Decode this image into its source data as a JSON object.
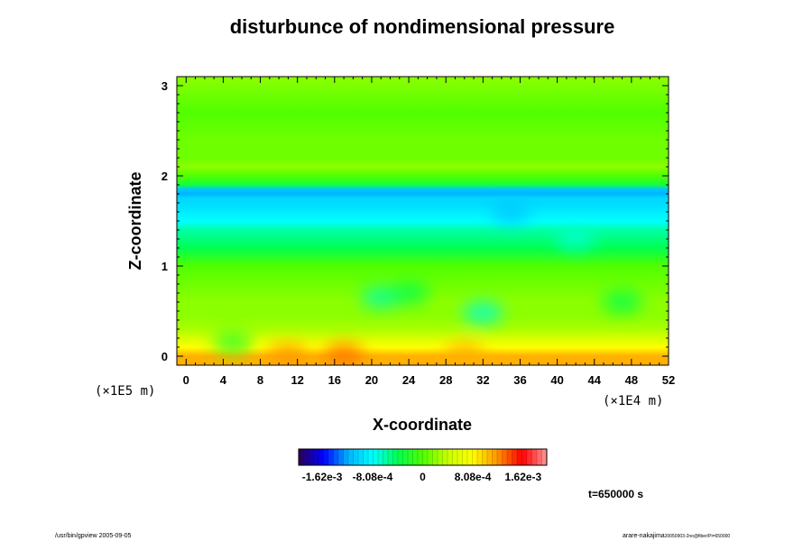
{
  "chart_data": {
    "type": "heatmap",
    "title": "disturbunce of nondimensional pressure",
    "xlabel": "X-coordinate",
    "ylabel": "Z-coordinate",
    "x_unit": "(×1E4 m)",
    "y_unit": "(×1E5 m)",
    "xlim": [
      -1,
      52
    ],
    "ylim": [
      -0.1,
      3.1
    ],
    "x_ticks": [
      "0",
      "4",
      "8",
      "12",
      "16",
      "20",
      "24",
      "28",
      "32",
      "36",
      "40",
      "44",
      "48",
      "52"
    ],
    "y_ticks": [
      "0",
      "1",
      "2",
      "3"
    ],
    "z_profile": {
      "z": [
        0.0,
        0.1,
        0.2,
        0.3,
        0.45,
        0.6,
        0.8,
        1.0,
        1.1,
        1.2,
        1.3,
        1.4,
        1.5,
        1.6,
        1.7,
        1.75,
        1.8,
        1.85,
        1.9,
        2.0,
        2.1,
        2.2,
        2.4,
        2.7,
        3.1
      ],
      "value": [
        0.0011,
        0.0008,
        0.0005,
        0.0003,
        0.0002,
        0.0002,
        0.0001,
        0.0,
        -0.0002,
        -0.0004,
        -0.0005,
        -0.0006,
        -0.0008,
        -0.0009,
        -0.001,
        -0.001,
        -0.0012,
        -0.0011,
        -0.0003,
        0.0,
        0.0002,
        0.0001,
        0.0001,
        0.0,
        0.0002
      ]
    },
    "blobs": [
      {
        "x": 21,
        "z": 0.65,
        "value": -0.0006
      },
      {
        "x": 24,
        "z": 0.7,
        "value": -0.0004
      },
      {
        "x": 32,
        "z": 0.48,
        "value": -0.0007
      },
      {
        "x": 47,
        "z": 0.6,
        "value": -0.0004
      },
      {
        "x": 5,
        "z": 0.15,
        "value": -0.0002
      },
      {
        "x": 17,
        "z": 0.02,
        "value": 0.0013
      },
      {
        "x": 11,
        "z": 0.02,
        "value": 0.0012
      },
      {
        "x": 30,
        "z": 0.03,
        "value": 0.0011
      },
      {
        "x": 35,
        "z": 1.6,
        "value": -0.0011
      },
      {
        "x": 42,
        "z": 1.3,
        "value": -0.0007
      }
    ],
    "colorbar": {
      "range": [
        -0.002,
        0.002
      ],
      "labels": [
        "-1.62e-3",
        "-8.08e-4",
        "0",
        "8.08e-4",
        "1.62e-3"
      ],
      "label_values": [
        -0.00162,
        -0.000808,
        0,
        0.000808,
        0.00162
      ],
      "stops": [
        "#2a0050",
        "#0000ff",
        "#00b4ff",
        "#00ffff",
        "#00ff50",
        "#50ff00",
        "#c8ff00",
        "#ffff00",
        "#ff9600",
        "#ff0000",
        "#ff9696"
      ]
    },
    "time_label": "t=650000 s"
  },
  "footer": {
    "left": "/usr/bin/gpview 2005-09-05",
    "right_main": "arare-nakajima",
    "right_small": "20050903-2no@fiber/Pi=650000"
  }
}
